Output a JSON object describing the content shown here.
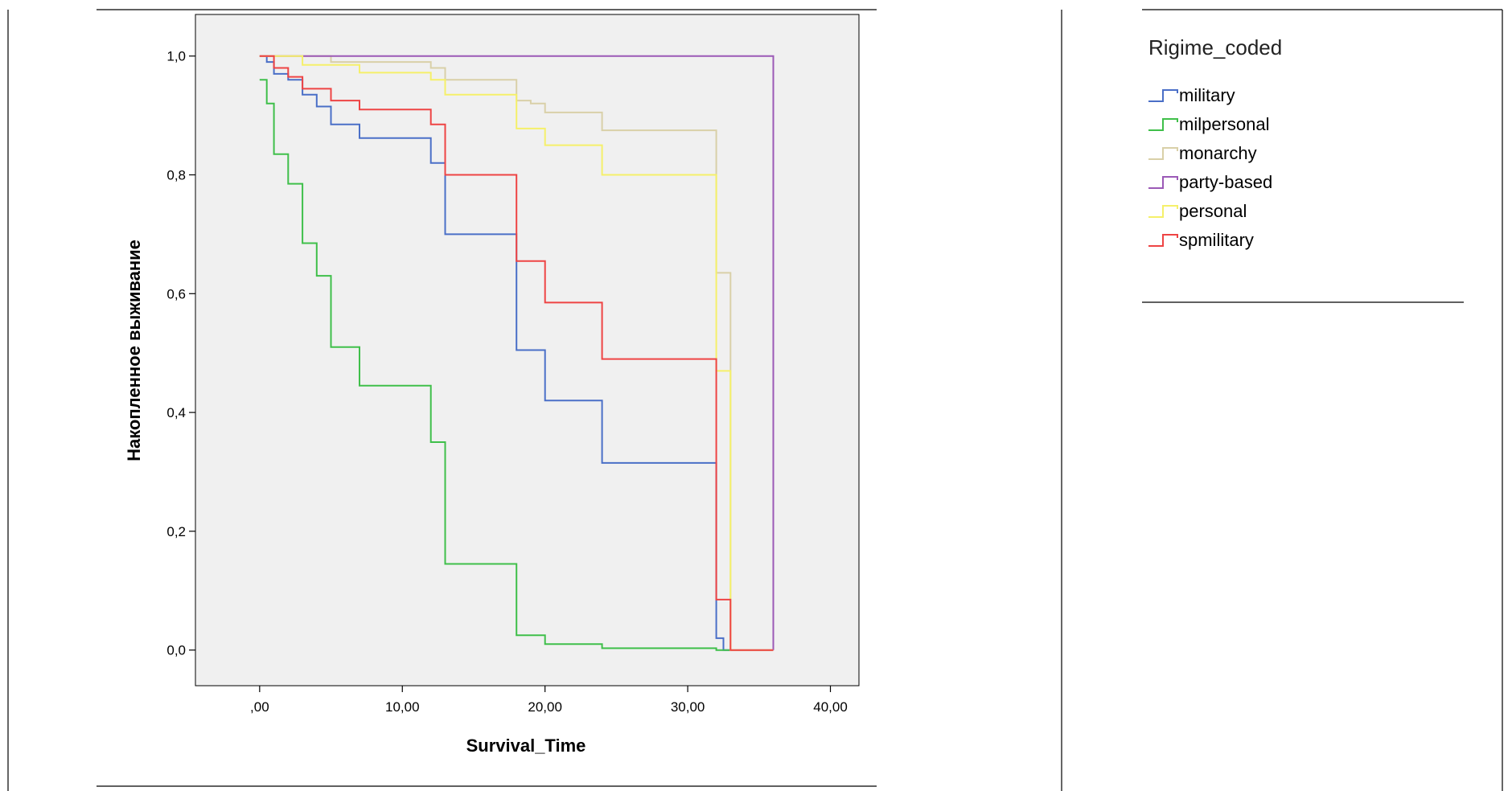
{
  "chart_data": {
    "type": "line",
    "step": true,
    "title": "",
    "xlabel": "Survival_Time",
    "ylabel": "Накопленное выживание",
    "xlim": [
      -4.5,
      42
    ],
    "ylim": [
      -0.06,
      1.07
    ],
    "x_ticks": [
      0,
      10,
      20,
      30,
      40
    ],
    "x_tick_labels": [
      ",00",
      "10,00",
      "20,00",
      "30,00",
      "40,00"
    ],
    "y_ticks": [
      0,
      0.2,
      0.4,
      0.6,
      0.8,
      1.0
    ],
    "y_tick_labels": [
      "0,0",
      "0,2",
      "0,4",
      "0,6",
      "0,8",
      "1,0"
    ],
    "grid": false,
    "plot_background": "#f0f0f0",
    "legend": {
      "title": "Rigime_coded",
      "position": "right"
    },
    "series": [
      {
        "name": "military",
        "color": "#4a6fc7",
        "x": [
          0,
          0.5,
          1,
          2,
          3,
          4,
          5,
          7,
          12,
          13,
          18,
          20,
          24,
          32,
          32.5,
          33,
          36
        ],
        "y": [
          1.0,
          0.99,
          0.97,
          0.96,
          0.935,
          0.915,
          0.885,
          0.862,
          0.82,
          0.7,
          0.505,
          0.42,
          0.315,
          0.02,
          0.0,
          0.0,
          0.0
        ]
      },
      {
        "name": "milpersonal",
        "color": "#3fbf4a",
        "x": [
          0,
          0.5,
          1,
          2,
          3,
          4,
          5,
          7,
          12,
          13,
          18,
          20,
          24,
          32,
          33
        ],
        "y": [
          0.96,
          0.92,
          0.835,
          0.785,
          0.685,
          0.63,
          0.51,
          0.445,
          0.35,
          0.145,
          0.025,
          0.01,
          0.003,
          0.0,
          0.0
        ]
      },
      {
        "name": "monarchy",
        "color": "#d9d0a8",
        "x": [
          0,
          5,
          12,
          13,
          18,
          19,
          20,
          24,
          32,
          32.5,
          33,
          36
        ],
        "y": [
          1.0,
          0.99,
          0.98,
          0.96,
          0.925,
          0.92,
          0.905,
          0.875,
          0.635,
          0.635,
          0.0,
          0.0
        ]
      },
      {
        "name": "party-based",
        "color": "#9b59b6",
        "x": [
          0,
          36
        ],
        "y": [
          1.0,
          0.0
        ]
      },
      {
        "name": "personal",
        "color": "#f5f06a",
        "x": [
          0,
          3,
          7,
          12,
          13,
          18,
          20,
          24,
          32,
          32.5,
          33,
          36
        ],
        "y": [
          1.0,
          0.985,
          0.972,
          0.96,
          0.935,
          0.878,
          0.85,
          0.8,
          0.47,
          0.47,
          0.0,
          0.0
        ]
      },
      {
        "name": "spmilitary",
        "color": "#ee4444",
        "x": [
          0,
          1,
          2,
          3,
          5,
          7,
          12,
          13,
          18,
          20,
          24,
          32,
          33,
          36
        ],
        "y": [
          1.0,
          0.98,
          0.965,
          0.945,
          0.925,
          0.91,
          0.885,
          0.8,
          0.655,
          0.585,
          0.49,
          0.085,
          0.0,
          0.0
        ]
      }
    ]
  }
}
